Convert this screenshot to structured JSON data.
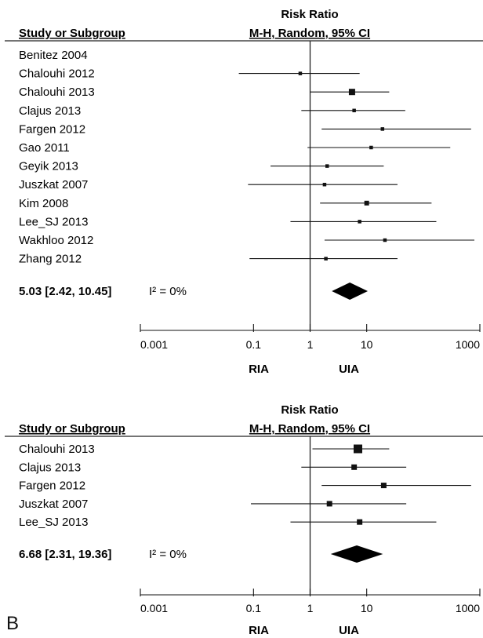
{
  "panel_label": "B",
  "chart_data": [
    {
      "type": "forest",
      "column_headers": {
        "study": "Study or Subgroup",
        "effect_line1": "Risk Ratio",
        "effect_line2": "M-H, Random, 95% CI"
      },
      "scale": "log",
      "xlim": [
        0.001,
        1000
      ],
      "x_ticks": [
        "0.001",
        "0.1",
        "1",
        "10",
        "1000"
      ],
      "x_tick_values": [
        0.001,
        0.1,
        1,
        10,
        1000
      ],
      "favours_left": "RIA",
      "favours_right": "UIA",
      "studies": [
        {
          "name": "Benitez 2004",
          "rr": null,
          "lo": null,
          "hi": null
        },
        {
          "name": "Chalouhi 2012",
          "rr": 0.67,
          "lo": 0.055,
          "hi": 7.5
        },
        {
          "name": "Chalouhi 2013",
          "rr": 5.5,
          "lo": 1.0,
          "hi": 25
        },
        {
          "name": "Clajus 2013",
          "rr": 6.0,
          "lo": 0.7,
          "hi": 48
        },
        {
          "name": "Fargen 2012",
          "rr": 19,
          "lo": 1.6,
          "hi": 700
        },
        {
          "name": "Gao 2011",
          "rr": 12,
          "lo": 0.9,
          "hi": 300
        },
        {
          "name": "Geyik 2013",
          "rr": 2.0,
          "lo": 0.2,
          "hi": 20
        },
        {
          "name": "Juszkat 2007",
          "rr": 1.8,
          "lo": 0.08,
          "hi": 35
        },
        {
          "name": "Kim 2008",
          "rr": 10,
          "lo": 1.5,
          "hi": 140
        },
        {
          "name": "Lee_SJ 2013",
          "rr": 7.5,
          "lo": 0.45,
          "hi": 170
        },
        {
          "name": "Wakhloo 2012",
          "rr": 21,
          "lo": 1.8,
          "hi": 800
        },
        {
          "name": "Zhang 2012",
          "rr": 1.9,
          "lo": 0.085,
          "hi": 35
        }
      ],
      "pooled": {
        "label": "5.03 [2.42, 10.45]",
        "heterogeneity": "I² = 0%",
        "rr": 5.03,
        "lo": 2.42,
        "hi": 10.45
      }
    },
    {
      "type": "forest",
      "column_headers": {
        "study": "Study or Subgroup",
        "effect_line1": "Risk Ratio",
        "effect_line2": "M-H, Random, 95% CI"
      },
      "scale": "log",
      "xlim": [
        0.001,
        1000
      ],
      "x_ticks": [
        "0.001",
        "0.1",
        "1",
        "10",
        "1000"
      ],
      "x_tick_values": [
        0.001,
        0.1,
        1,
        10,
        1000
      ],
      "favours_left": "RIA",
      "favours_right": "UIA",
      "studies": [
        {
          "name": "Chalouhi 2013",
          "rr": 7.0,
          "lo": 1.1,
          "hi": 25
        },
        {
          "name": "Clajus 2013",
          "rr": 6.0,
          "lo": 0.7,
          "hi": 50
        },
        {
          "name": "Fargen 2012",
          "rr": 20,
          "lo": 1.6,
          "hi": 700
        },
        {
          "name": "Juszkat 2007",
          "rr": 2.2,
          "lo": 0.09,
          "hi": 50
        },
        {
          "name": "Lee_SJ 2013",
          "rr": 7.5,
          "lo": 0.45,
          "hi": 170
        }
      ],
      "pooled": {
        "label": "6.68 [2.31, 19.36]",
        "heterogeneity": "I² = 0%",
        "rr": 6.68,
        "lo": 2.31,
        "hi": 19.36
      }
    }
  ]
}
